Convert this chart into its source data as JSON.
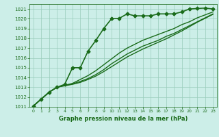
{
  "xlabel": "Graphe pression niveau de la mer (hPa)",
  "bg_color": "#cceee8",
  "line_color": "#1a6b1a",
  "grid_color": "#99ccbb",
  "xlim": [
    -0.5,
    23.5
  ],
  "ylim": [
    1011,
    1021.5
  ],
  "yticks": [
    1011,
    1012,
    1013,
    1014,
    1015,
    1016,
    1017,
    1018,
    1019,
    1020,
    1021
  ],
  "xticks": [
    0,
    1,
    2,
    3,
    4,
    5,
    6,
    7,
    8,
    9,
    10,
    11,
    12,
    13,
    14,
    15,
    16,
    17,
    18,
    19,
    20,
    21,
    22,
    23
  ],
  "series": [
    {
      "x": [
        0,
        1,
        2,
        3,
        4,
        5,
        6,
        7,
        8,
        9,
        10,
        11,
        12,
        13,
        14,
        15,
        16,
        17,
        18,
        19,
        20,
        21,
        22,
        23
      ],
      "y": [
        1011.1,
        1011.8,
        1012.5,
        1013.0,
        1013.3,
        1015.0,
        1015.0,
        1016.7,
        1017.8,
        1019.0,
        1020.0,
        1020.05,
        1020.5,
        1020.3,
        1020.3,
        1020.3,
        1020.5,
        1020.5,
        1020.5,
        1020.7,
        1021.0,
        1021.05,
        1021.1,
        1021.0
      ],
      "marker": "D",
      "markersize": 2.5,
      "linewidth": 1.2
    },
    {
      "x": [
        0,
        1,
        2,
        3,
        4,
        5,
        6,
        7,
        8,
        9,
        10,
        11,
        12,
        13,
        14,
        15,
        16,
        17,
        18,
        19,
        20,
        21,
        22,
        23
      ],
      "y": [
        1011.1,
        1011.8,
        1012.5,
        1013.0,
        1013.2,
        1013.4,
        1013.8,
        1014.2,
        1014.7,
        1015.3,
        1015.9,
        1016.5,
        1017.0,
        1017.4,
        1017.8,
        1018.1,
        1018.4,
        1018.7,
        1019.0,
        1019.4,
        1019.7,
        1020.1,
        1020.4,
        1020.7
      ],
      "marker": null,
      "markersize": 0,
      "linewidth": 1.0
    },
    {
      "x": [
        0,
        1,
        2,
        3,
        4,
        5,
        6,
        7,
        8,
        9,
        10,
        11,
        12,
        13,
        14,
        15,
        16,
        17,
        18,
        19,
        20,
        21,
        22,
        23
      ],
      "y": [
        1011.1,
        1011.8,
        1012.5,
        1013.0,
        1013.2,
        1013.35,
        1013.6,
        1013.9,
        1014.3,
        1014.8,
        1015.4,
        1015.9,
        1016.4,
        1016.8,
        1017.2,
        1017.5,
        1017.8,
        1018.2,
        1018.5,
        1018.9,
        1019.3,
        1019.7,
        1020.1,
        1020.5
      ],
      "marker": null,
      "markersize": 0,
      "linewidth": 1.0
    },
    {
      "x": [
        0,
        1,
        2,
        3,
        4,
        5,
        6,
        7,
        8,
        9,
        10,
        11,
        12,
        13,
        14,
        15,
        16,
        17,
        18,
        19,
        20,
        21,
        22,
        23
      ],
      "y": [
        1011.1,
        1011.8,
        1012.5,
        1013.0,
        1013.15,
        1013.3,
        1013.5,
        1013.8,
        1014.15,
        1014.6,
        1015.1,
        1015.6,
        1016.1,
        1016.5,
        1016.9,
        1017.25,
        1017.6,
        1017.95,
        1018.35,
        1018.75,
        1019.2,
        1019.65,
        1020.05,
        1020.45
      ],
      "marker": null,
      "markersize": 0,
      "linewidth": 1.0
    }
  ]
}
